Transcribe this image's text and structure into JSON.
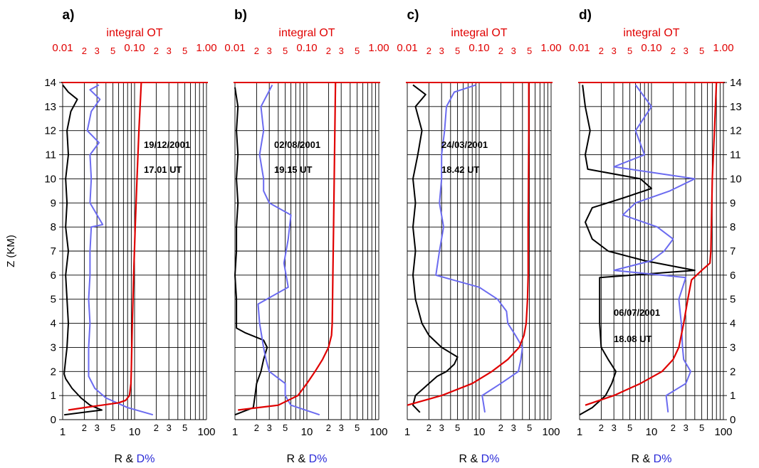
{
  "chart_data": [
    {
      "type": "line",
      "panel_label": "a)",
      "top_axis_title": "integral OT",
      "top_axis": {
        "scale": "log",
        "range": [
          0.01,
          1.0
        ],
        "labels": [
          "0.01",
          "2",
          "3",
          "5",
          "0.10",
          "2",
          "3",
          "5",
          "1.00"
        ]
      },
      "bottom_axis": {
        "scale": "log",
        "range": [
          1,
          100
        ],
        "labels": [
          "1",
          "2",
          "3",
          "5",
          "10",
          "2",
          "3",
          "5",
          "100"
        ]
      },
      "xlabel": [
        "R & ",
        "D%"
      ],
      "ylabel": "Z (KM)",
      "ylim": [
        0,
        14
      ],
      "y_ticks": [
        "0",
        "1",
        "2",
        "3",
        "4",
        "5",
        "6",
        "7",
        "8",
        "9",
        "10",
        "11",
        "12",
        "13",
        "14"
      ],
      "annotations": [
        "19/12/2001",
        "17.01 UT"
      ],
      "series": [
        {
          "name": "R",
          "color": "#000000",
          "axis": "bottom",
          "z": [
            0.2,
            0.4,
            0.6,
            0.9,
            1.3,
            1.7,
            1.9,
            2.5,
            3,
            4,
            5,
            6,
            7,
            8,
            9,
            10,
            11,
            12,
            12.8,
            13.3,
            13.6,
            13.9
          ],
          "x": [
            1.05,
            3.5,
            2.4,
            1.8,
            1.35,
            1.1,
            1.05,
            1.1,
            1.15,
            1.2,
            1.15,
            1.1,
            1.2,
            1.1,
            1.15,
            1.1,
            1.2,
            1.15,
            1.3,
            1.6,
            1.2,
            1.0
          ]
        },
        {
          "name": "D%",
          "color": "#6b6bf0",
          "axis": "bottom",
          "z": [
            0.2,
            0.5,
            0.9,
            1.3,
            1.8,
            2.5,
            3,
            4,
            5,
            6,
            7,
            8,
            8.1,
            9,
            10,
            11,
            11.5,
            12,
            12.8,
            13.3,
            13.7,
            13.9
          ],
          "x": [
            18,
            8,
            4,
            2.8,
            2.3,
            2.3,
            2.3,
            2.4,
            2.3,
            2.4,
            2.4,
            2.5,
            3.6,
            2.4,
            2.5,
            2.4,
            3.2,
            2.2,
            2.5,
            3.3,
            2.4,
            3.2
          ]
        },
        {
          "name": "integral OT",
          "color": "#e00000",
          "axis": "top",
          "z": [
            0.4,
            0.5,
            0.6,
            0.7,
            0.8,
            1.0,
            1.5,
            2,
            4,
            6,
            8,
            10,
            12,
            14
          ],
          "x": [
            0.012,
            0.02,
            0.035,
            0.06,
            0.075,
            0.085,
            0.089,
            0.09,
            0.093,
            0.097,
            0.102,
            0.108,
            0.115,
            0.124
          ]
        }
      ]
    },
    {
      "type": "line",
      "panel_label": "b)",
      "top_axis_title": "integral OT",
      "top_axis": {
        "scale": "log",
        "range": [
          0.01,
          1.0
        ],
        "labels": [
          "0.01",
          "2",
          "3",
          "5",
          "0.10",
          "2",
          "3",
          "5",
          "1.00"
        ]
      },
      "bottom_axis": {
        "scale": "log",
        "range": [
          1,
          100
        ],
        "labels": [
          "1",
          "2",
          "3",
          "5",
          "10",
          "2",
          "3",
          "5",
          "100"
        ]
      },
      "xlabel": [
        "R & ",
        "D%"
      ],
      "ylabel": "",
      "ylim": [
        0,
        14
      ],
      "annotations": [
        "02/08/2001",
        "19.15 UT"
      ],
      "series": [
        {
          "name": "R",
          "color": "#000000",
          "axis": "bottom",
          "z": [
            0.2,
            0.5,
            1.0,
            1.5,
            2.0,
            2.5,
            3.0,
            3.3,
            3.6,
            3.8,
            5,
            6,
            7,
            8,
            9,
            10,
            11,
            12,
            13,
            13.8
          ],
          "x": [
            1.0,
            1.8,
            1.9,
            2.0,
            2.3,
            2.5,
            2.8,
            2.5,
            1.4,
            1.05,
            1.05,
            1.0,
            1.05,
            1.05,
            1.1,
            1.05,
            1.1,
            1.05,
            1.1,
            1.0
          ]
        },
        {
          "name": "D%",
          "color": "#6b6bf0",
          "axis": "bottom",
          "z": [
            0.2,
            0.6,
            1.0,
            1.5,
            2.0,
            2.5,
            3.0,
            4.0,
            4.8,
            5.5,
            6.5,
            7.5,
            8.5,
            9,
            9.5,
            10,
            11,
            12,
            13,
            13.9
          ],
          "x": [
            15,
            6,
            5,
            5,
            3,
            2.7,
            2.5,
            2.2,
            2.1,
            5.5,
            4.8,
            5.5,
            6,
            3,
            2.5,
            2.5,
            2.2,
            2.5,
            2.3,
            3.3
          ]
        },
        {
          "name": "integral OT",
          "color": "#e00000",
          "axis": "top",
          "z": [
            0.4,
            0.6,
            1.0,
            1.5,
            2.0,
            2.5,
            3.0,
            3.5,
            4,
            6,
            8,
            10,
            12,
            14
          ],
          "x": [
            0.011,
            0.04,
            0.075,
            0.1,
            0.13,
            0.165,
            0.2,
            0.22,
            0.225,
            0.23,
            0.235,
            0.24,
            0.245,
            0.25
          ]
        }
      ]
    },
    {
      "type": "line",
      "panel_label": "c)",
      "top_axis_title": "integral OT",
      "top_axis": {
        "scale": "log",
        "range": [
          0.01,
          1.0
        ],
        "labels": [
          "0.01",
          "2",
          "3",
          "5",
          "0.10",
          "2",
          "3",
          "5",
          "1.00"
        ]
      },
      "bottom_axis": {
        "scale": "log",
        "range": [
          1,
          100
        ],
        "labels": [
          "1",
          "2",
          "3",
          "5",
          "10",
          "2",
          "3",
          "5",
          "100"
        ]
      },
      "xlabel": [
        "R & ",
        "D%"
      ],
      "ylabel": "",
      "ylim": [
        0,
        14
      ],
      "annotations": [
        "24/03/2001",
        "18.42 UT"
      ],
      "series": [
        {
          "name": "R",
          "color": "#000000",
          "axis": "bottom",
          "z": [
            0.3,
            0.6,
            1.0,
            1.5,
            1.8,
            2.0,
            2.3,
            2.6,
            3.0,
            3.5,
            4.0,
            5,
            6,
            7,
            8,
            9,
            10,
            11,
            12,
            13,
            13.5,
            13.9
          ],
          "x": [
            1.5,
            1.2,
            1.3,
            2.0,
            2.6,
            3.5,
            4.5,
            5.0,
            3.0,
            2.0,
            1.6,
            1.3,
            1.2,
            1.3,
            1.2,
            1.3,
            1.2,
            1.4,
            1.6,
            1.3,
            1.8,
            1.2
          ]
        },
        {
          "name": "D%",
          "color": "#6b6bf0",
          "axis": "bottom",
          "z": [
            0.3,
            1.0,
            1.5,
            2.0,
            2.5,
            3.0,
            3.5,
            4.0,
            4.5,
            5.0,
            5.5,
            6,
            7,
            8,
            9,
            10,
            11,
            12,
            13,
            13.6,
            13.9
          ],
          "x": [
            12,
            11,
            20,
            35,
            38,
            40,
            32,
            25,
            24,
            18,
            10,
            2.5,
            2.8,
            3.2,
            2.8,
            3,
            3,
            3.3,
            3.5,
            4.5,
            9
          ]
        },
        {
          "name": "integral OT",
          "color": "#e00000",
          "axis": "top",
          "z": [
            0.6,
            1.0,
            1.5,
            2.0,
            2.5,
            3.0,
            3.5,
            4,
            5,
            6,
            8,
            10,
            12,
            14
          ],
          "x": [
            0.01,
            0.03,
            0.08,
            0.15,
            0.25,
            0.36,
            0.42,
            0.45,
            0.47,
            0.48,
            0.48,
            0.485,
            0.49,
            0.49
          ]
        }
      ]
    },
    {
      "type": "line",
      "panel_label": "d)",
      "top_axis_title": "integral OT",
      "top_axis": {
        "scale": "log",
        "range": [
          0.01,
          1.0
        ],
        "labels": [
          "0.01",
          "2",
          "3",
          "5",
          "0.10",
          "2",
          "3",
          "5",
          "1.00"
        ]
      },
      "bottom_axis": {
        "scale": "log",
        "range": [
          1,
          100
        ],
        "labels": [
          "1",
          "2",
          "3",
          "5",
          "10",
          "2",
          "3",
          "5",
          "100"
        ]
      },
      "xlabel": [
        "R & ",
        "D%"
      ],
      "ylabel": "",
      "y_ticks_right": [
        "0",
        "1",
        "2",
        "3",
        "4",
        "5",
        "6",
        "7",
        "8",
        "9",
        "10",
        "11",
        "12",
        "13",
        "14"
      ],
      "ylim": [
        0,
        14
      ],
      "annotations": [
        "06/07/2001",
        "18.08 UT"
      ],
      "series": [
        {
          "name": "R",
          "color": "#000000",
          "axis": "bottom",
          "z": [
            0.2,
            0.5,
            1.0,
            1.5,
            2.0,
            2.5,
            3,
            4,
            5,
            5.9,
            6.2,
            6.6,
            7,
            7.5,
            8.2,
            8.8,
            9.2,
            9.6,
            10,
            10.4,
            11,
            12,
            13,
            13.9
          ],
          "x": [
            1.0,
            1.5,
            2.3,
            2.8,
            3.2,
            2.5,
            2.0,
            1.9,
            1.9,
            1.9,
            40,
            8,
            2.5,
            1.5,
            1.2,
            1.5,
            4,
            10,
            7,
            1.3,
            1.2,
            1.4,
            1.2,
            1.1
          ]
        },
        {
          "name": "D%",
          "color": "#6b6bf0",
          "axis": "bottom",
          "z": [
            0.3,
            1.0,
            1.5,
            2.0,
            2.5,
            3,
            4,
            5,
            5.9,
            6.2,
            6.6,
            7,
            7.5,
            8.0,
            8.5,
            9.0,
            9.5,
            10,
            10.5,
            11,
            12,
            13,
            13.9
          ],
          "x": [
            17,
            16,
            30,
            35,
            28,
            27,
            26,
            24,
            30,
            3,
            10,
            15,
            20,
            12,
            4,
            6,
            18,
            40,
            3,
            8,
            6,
            10,
            6
          ]
        },
        {
          "name": "integral OT",
          "color": "#e00000",
          "axis": "top",
          "z": [
            0.6,
            1.0,
            1.5,
            2.0,
            2.5,
            3,
            4,
            5,
            5.8,
            6.2,
            6.5,
            7,
            8,
            10,
            12,
            14
          ],
          "x": [
            0.012,
            0.03,
            0.07,
            0.14,
            0.2,
            0.24,
            0.28,
            0.32,
            0.36,
            0.5,
            0.65,
            0.67,
            0.68,
            0.7,
            0.75,
            0.8
          ]
        }
      ]
    }
  ]
}
